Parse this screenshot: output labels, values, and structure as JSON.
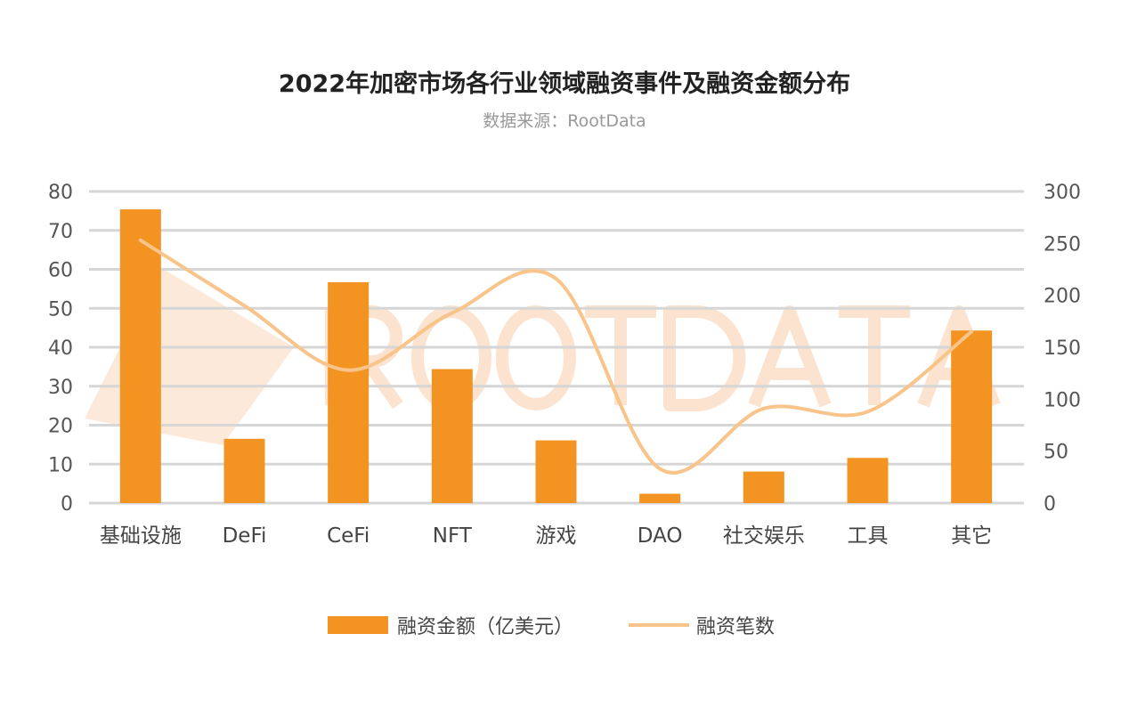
{
  "chart_data": {
    "type": "bar+line",
    "title": "2022年加密市场各行业领域融资事件及融资金额分布",
    "subtitle": "数据来源：RootData",
    "watermark": "ROOTDATA",
    "categories": [
      "基础设施",
      "DeFi",
      "CeFi",
      "NFT",
      "游戏",
      "DAO",
      "社交娱乐",
      "工具",
      "其它"
    ],
    "series": [
      {
        "name": "融资金额（亿美元）",
        "type": "bar",
        "axis": "left",
        "color": "#f39422",
        "values": [
          75.4,
          16.5,
          56.7,
          34.4,
          16.1,
          2.4,
          8.1,
          11.6,
          44.3
        ]
      },
      {
        "name": "融资笔数",
        "type": "line",
        "axis": "right",
        "color": "#f8c48a",
        "values": [
          253,
          190,
          128,
          183,
          216,
          33,
          91,
          88,
          165
        ]
      }
    ],
    "y_left": {
      "range": [
        0,
        80
      ],
      "ticks": [
        "0",
        "10",
        "20",
        "30",
        "40",
        "50",
        "60",
        "70",
        "80"
      ]
    },
    "y_right": {
      "range": [
        0,
        300
      ],
      "ticks": [
        "0",
        "50",
        "100",
        "150",
        "200",
        "250",
        "300"
      ]
    },
    "grid": true,
    "legend": "bottom"
  }
}
